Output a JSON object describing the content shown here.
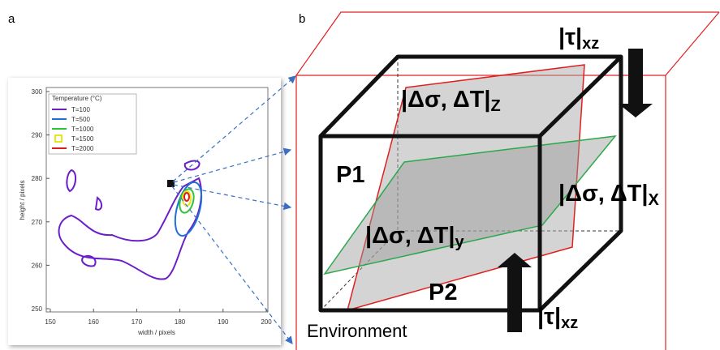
{
  "panel_a": {
    "label": "a",
    "legend": {
      "title": "Temperature (°C)",
      "entries": [
        "T=100",
        "T=500",
        "T=1000",
        "T=1500",
        "T=2000"
      ],
      "colors": [
        "#6a1fc9",
        "#1f6fd6",
        "#2ec43a",
        "#e6e61a",
        "#e01b1b"
      ]
    },
    "x_axis": {
      "label": "width / pixels",
      "ticks": [
        "150",
        "160",
        "170",
        "180",
        "190",
        "200"
      ]
    },
    "y_axis": {
      "label": "height / pixels",
      "ticks": [
        "300",
        "290",
        "280",
        "270",
        "260",
        "250"
      ]
    }
  },
  "panel_b": {
    "label": "b",
    "tau_top": {
      "main": "|τ|",
      "sub": "xz"
    },
    "tau_bottom": {
      "main": "|τ|",
      "sub": "xz"
    },
    "plane_z": {
      "main": "|Δσ, ΔT|",
      "sub": "Z"
    },
    "plane_x": {
      "main": "|Δσ, ΔT|",
      "sub": "X"
    },
    "plane_y": {
      "main": "|Δσ, ΔT|",
      "sub": "y"
    },
    "p1": "P1",
    "p2": "P2",
    "environment": "Environment"
  }
}
